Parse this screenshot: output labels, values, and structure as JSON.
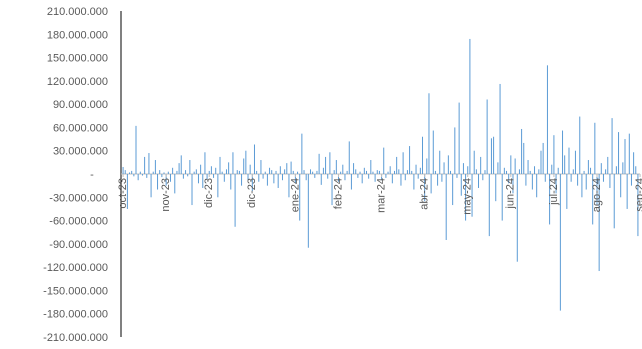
{
  "chart_data": {
    "type": "bar",
    "title": "",
    "xlabel": "",
    "ylabel": "",
    "ylim": [
      -210000000,
      210000000
    ],
    "y_ticks": [
      {
        "value": 210000000,
        "label": "210.000.000"
      },
      {
        "value": 180000000,
        "label": "180.000.000"
      },
      {
        "value": 150000000,
        "label": "150.000.000"
      },
      {
        "value": 120000000,
        "label": "120.000.000"
      },
      {
        "value": 90000000,
        "label": "90.000.000"
      },
      {
        "value": 60000000,
        "label": "60.000.000"
      },
      {
        "value": 30000000,
        "label": "30.000.000"
      },
      {
        "value": 0,
        "label": "-"
      },
      {
        "value": -30000000,
        "label": "-30.000.000"
      },
      {
        "value": -60000000,
        "label": "-60.000.000"
      },
      {
        "value": -90000000,
        "label": "-90.000.000"
      },
      {
        "value": -120000000,
        "label": "-120.000.000"
      },
      {
        "value": -150000000,
        "label": "-150.000.000"
      },
      {
        "value": -180000000,
        "label": "-180.000.000"
      },
      {
        "value": -210000000,
        "label": "-210.000.000"
      }
    ],
    "x_ticks": [
      {
        "label": "oct-23",
        "position": 0
      },
      {
        "label": "nov-23",
        "position": 20
      },
      {
        "label": "dic-23",
        "position": 40
      },
      {
        "label": "dic-23",
        "position": 60
      },
      {
        "label": "ene-24",
        "position": 80
      },
      {
        "label": "feb-24",
        "position": 100
      },
      {
        "label": "mar-24",
        "position": 120
      },
      {
        "label": "abr-24",
        "position": 140
      },
      {
        "label": "may-24",
        "position": 160
      },
      {
        "label": "jun-24",
        "position": 180
      },
      {
        "label": "jul-24",
        "position": 200
      },
      {
        "label": "ago-24",
        "position": 220
      },
      {
        "label": "sep-24",
        "position": 240
      }
    ],
    "series": [
      {
        "color": "#5b9bd5",
        "values": [
          9000000,
          5000000,
          -45000000,
          2000000,
          4000000,
          -3000000,
          62000000,
          -8000000,
          3000000,
          -2000000,
          22000000,
          -5000000,
          27000000,
          -30000000,
          3000000,
          18000000,
          -20000000,
          5000000,
          -4000000,
          2000000,
          -15000000,
          3000000,
          -10000000,
          8000000,
          -25000000,
          4000000,
          14000000,
          24000000,
          -6000000,
          5000000,
          -3000000,
          18000000,
          -40000000,
          3000000,
          6000000,
          -12000000,
          12000000,
          -18000000,
          28000000,
          -7000000,
          4000000,
          10000000,
          -5000000,
          8000000,
          -30000000,
          22000000,
          3000000,
          -10000000,
          6000000,
          15000000,
          -20000000,
          28000000,
          -68000000,
          5000000,
          4000000,
          -15000000,
          20000000,
          30000000,
          -8000000,
          12000000,
          -22000000,
          38000000,
          4000000,
          -10000000,
          18000000,
          -6000000,
          3000000,
          -15000000,
          8000000,
          5000000,
          -12000000,
          4000000,
          -18000000,
          10000000,
          -8000000,
          6000000,
          14000000,
          -30000000,
          16000000,
          4000000,
          -12000000,
          3000000,
          -60000000,
          52000000,
          5000000,
          -8000000,
          -95000000,
          6000000,
          3000000,
          -5000000,
          4000000,
          26000000,
          -14000000,
          8000000,
          22000000,
          -6000000,
          28000000,
          -40000000,
          5000000,
          18000000,
          -10000000,
          3000000,
          12000000,
          -8000000,
          4000000,
          42000000,
          -20000000,
          14000000,
          6000000,
          -5000000,
          3000000,
          -12000000,
          8000000,
          4000000,
          -6000000,
          18000000,
          3000000,
          -10000000,
          5000000,
          4000000,
          -8000000,
          34000000,
          -5000000,
          3000000,
          10000000,
          -12000000,
          4000000,
          22000000,
          6000000,
          -15000000,
          28000000,
          -8000000,
          5000000,
          36000000,
          4000000,
          -20000000,
          12000000,
          -6000000,
          8000000,
          48000000,
          -35000000,
          20000000,
          104000000,
          -25000000,
          56000000,
          4000000,
          -15000000,
          30000000,
          -10000000,
          15000000,
          -85000000,
          24000000,
          4000000,
          -40000000,
          60000000,
          -5000000,
          92000000,
          -28000000,
          14000000,
          -60000000,
          10000000,
          174000000,
          -55000000,
          30000000,
          6000000,
          -18000000,
          22000000,
          -8000000,
          5000000,
          96000000,
          -80000000,
          46000000,
          48000000,
          -35000000,
          15000000,
          116000000,
          -60000000,
          8000000,
          4000000,
          -12000000,
          24000000,
          -25000000,
          20000000,
          -113000000,
          6000000,
          58000000,
          40000000,
          -15000000,
          18000000,
          4000000,
          -20000000,
          10000000,
          -30000000,
          6000000,
          30000000,
          40000000,
          -10000000,
          140000000,
          -65000000,
          12000000,
          50000000,
          -25000000,
          8000000,
          -176000000,
          56000000,
          24000000,
          -45000000,
          34000000,
          -10000000,
          6000000,
          30000000,
          -15000000,
          74000000,
          -30000000,
          4000000,
          -20000000,
          18000000,
          8000000,
          -65000000,
          66000000,
          -40000000,
          -125000000,
          14000000,
          -10000000,
          6000000,
          22000000,
          -18000000,
          72000000,
          -70000000,
          10000000,
          54000000,
          -30000000,
          15000000,
          45000000,
          -45000000,
          52000000,
          -15000000,
          28000000,
          10000000,
          -80000000
        ]
      }
    ],
    "grid": false,
    "legend": "none"
  }
}
